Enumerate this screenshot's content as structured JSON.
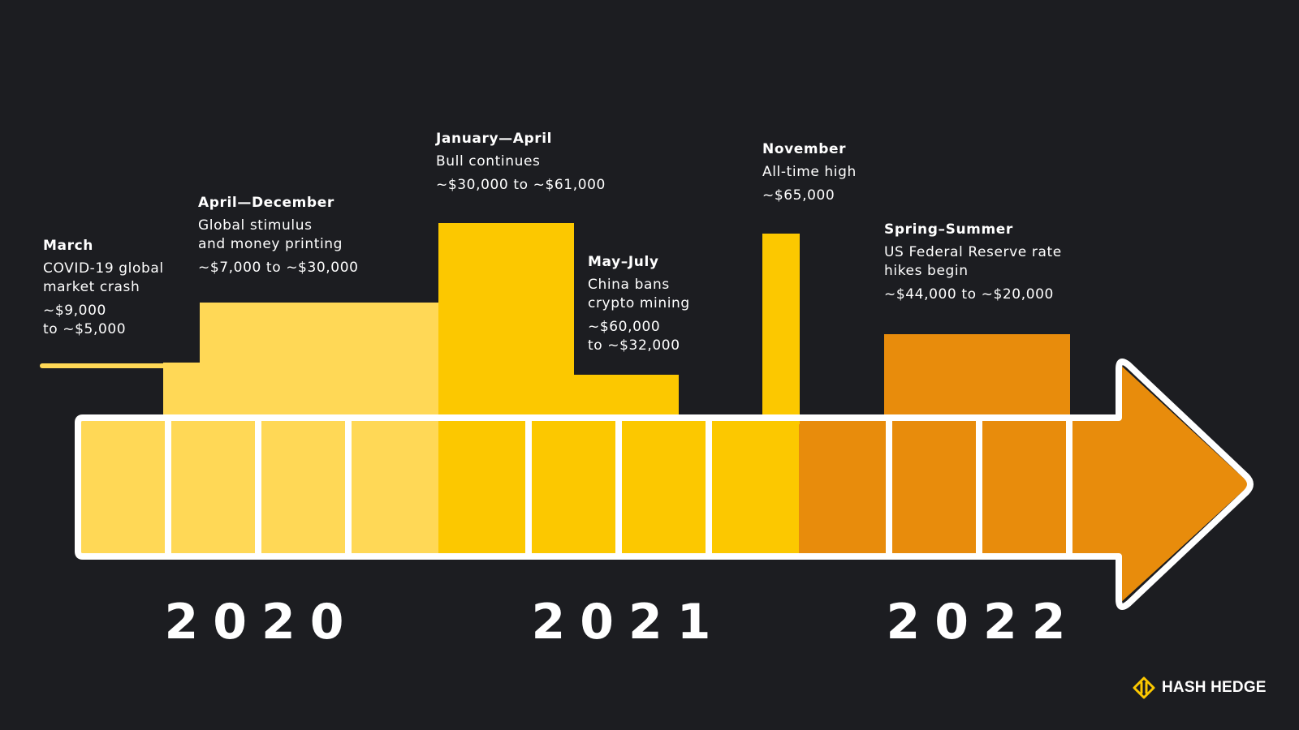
{
  "colors": {
    "background": "#1c1d21",
    "phase_2020": "#ffd856",
    "phase_2021": "#fcc800",
    "phase_2022": "#e88c0c",
    "outline": "#ffffff"
  },
  "events": [
    {
      "title": "March",
      "description": "COVID-19 global\nmarket crash",
      "price": "~$9,000\nto ~$5,000"
    },
    {
      "title": "April—December",
      "description": "Global stimulus\nand money printing",
      "price": "~$7,000 to ~$30,000"
    },
    {
      "title": "January—April",
      "description": "Bull continues",
      "price": "~$30,000 to ~$61,000"
    },
    {
      "title": "May–July",
      "description": "China bans\ncrypto mining",
      "price": "~$60,000\nto ~$32,000"
    },
    {
      "title": "November",
      "description": "All-time high",
      "price": "~$65,000"
    },
    {
      "title": "Spring–Summer",
      "description": "US Federal Reserve rate\nhikes begin",
      "price": "~$44,000 to ~$20,000"
    }
  ],
  "years": [
    "2020",
    "2021",
    "2022"
  ],
  "brand": {
    "name": "HASH HEDGE",
    "icon": "hash-hedge-logo-icon"
  }
}
